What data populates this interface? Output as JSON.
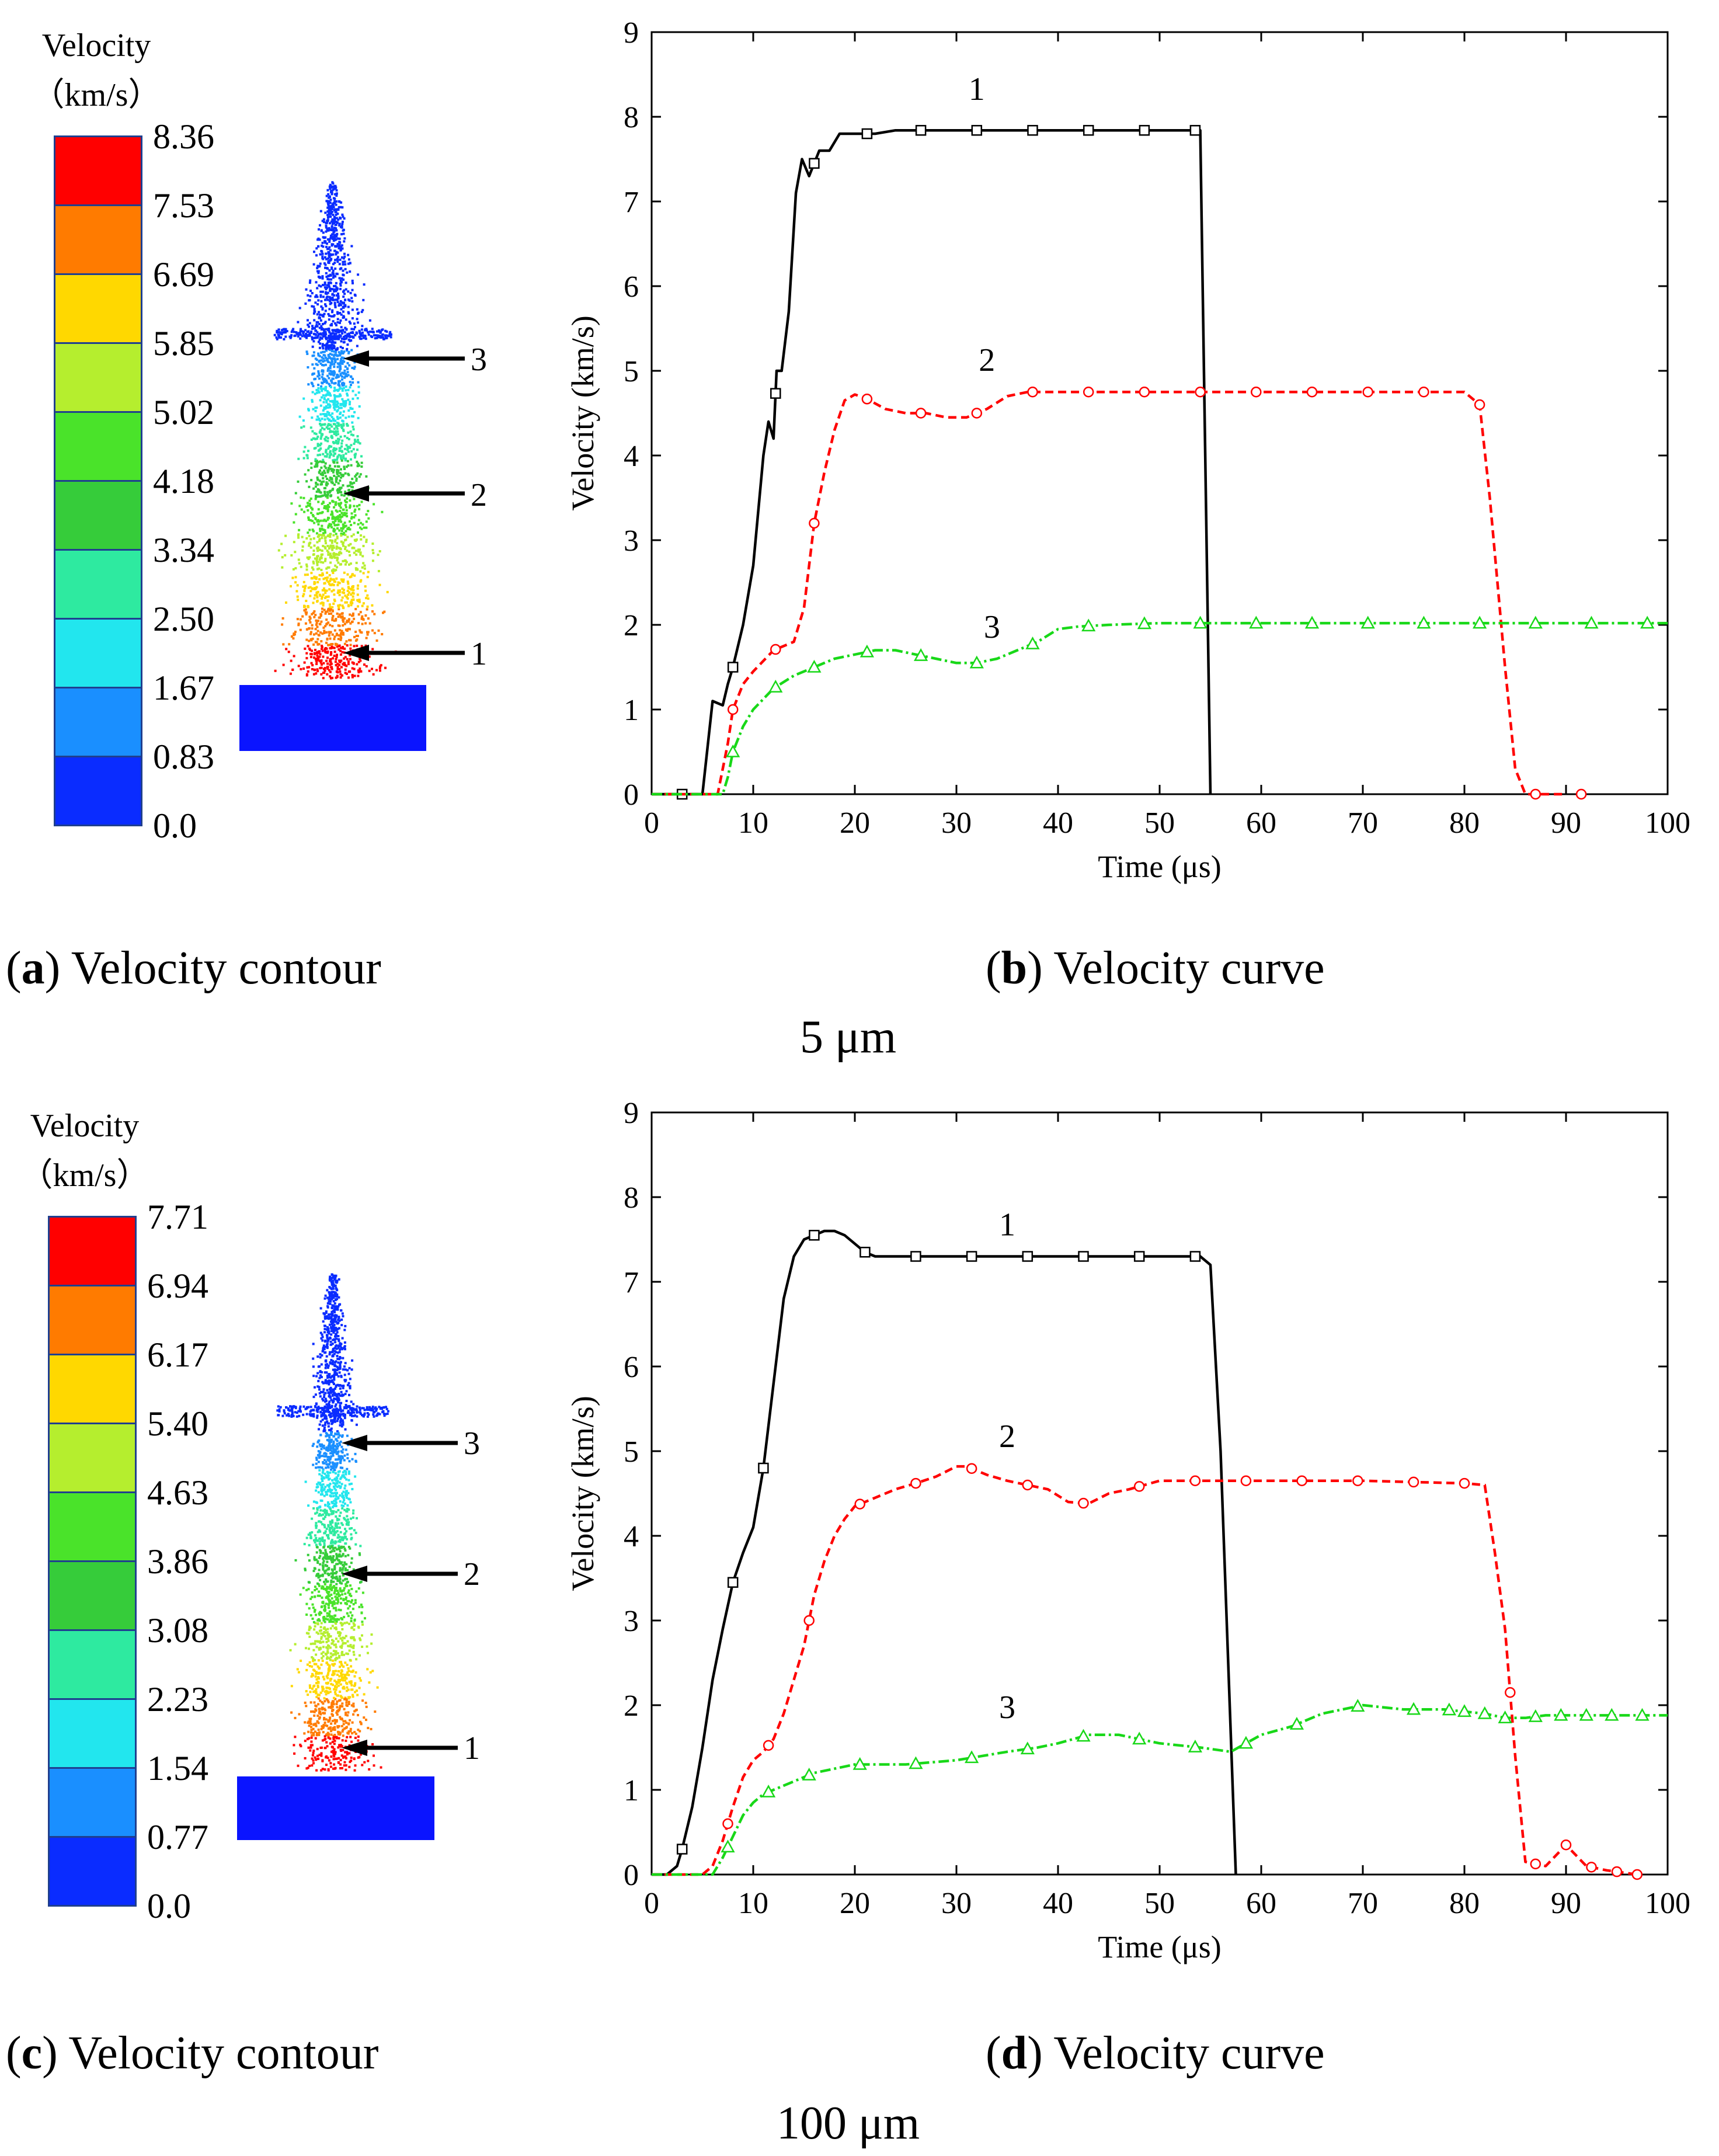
{
  "contours": [
    {
      "id": "a",
      "title_line1": "Velocity",
      "title_line2": "（km/s）",
      "levels": [
        "8.36",
        "7.53",
        "6.69",
        "5.85",
        "5.02",
        "4.18",
        "3.34",
        "2.50",
        "1.67",
        "0.83",
        "0.0"
      ],
      "colors": [
        "#ff0000",
        "#ff7b00",
        "#ffd800",
        "#b5ee2e",
        "#4ae32a",
        "#36cc3a",
        "#2eeaa0",
        "#22e6ee",
        "#1a8fff",
        "#0a2cff"
      ],
      "arrow_labels": [
        "3",
        "2",
        "1"
      ],
      "caption_letter": "a",
      "caption_text": "Velocity contour"
    },
    {
      "id": "c",
      "title_line1": "Velocity",
      "title_line2": "（km/s）",
      "levels": [
        "7.71",
        "6.94",
        "6.17",
        "5.40",
        "4.63",
        "3.86",
        "3.08",
        "2.23",
        "1.54",
        "0.77",
        "0.0"
      ],
      "colors": [
        "#ff0000",
        "#ff7b00",
        "#ffd800",
        "#b5ee2e",
        "#4ae32a",
        "#36cc3a",
        "#2eeaa0",
        "#22e6ee",
        "#1a8fff",
        "#0a2cff"
      ],
      "arrow_labels": [
        "3",
        "2",
        "1"
      ],
      "caption_letter": "c",
      "caption_text": "Velocity contour"
    }
  ],
  "group_labels": [
    "5 μm",
    "100 μm"
  ],
  "chart_data": [
    {
      "type": "line",
      "caption_letter": "b",
      "caption_text": "Velocity curve",
      "xlabel": "Time (μs)",
      "ylabel": "Velocity (km/s)",
      "xlim": [
        0,
        100
      ],
      "ylim": [
        0,
        9
      ],
      "xticks": [
        0,
        10,
        20,
        30,
        40,
        50,
        60,
        70,
        80,
        90,
        100
      ],
      "yticks": [
        0,
        1,
        2,
        3,
        4,
        5,
        6,
        7,
        8,
        9
      ],
      "series": [
        {
          "name": "1",
          "color": "#000000",
          "dash": "",
          "marker": "square",
          "x": [
            0,
            5,
            6,
            7,
            7.5,
            8,
            9,
            10,
            11,
            11.5,
            12,
            12.3,
            12.8,
            13.5,
            14.2,
            14.8,
            15.5,
            16.5,
            17.5,
            18.5,
            20,
            22,
            24,
            26,
            30,
            40,
            50,
            54,
            55
          ],
          "y": [
            0,
            0,
            1.1,
            1.05,
            1.3,
            1.5,
            2.0,
            2.7,
            4.0,
            4.4,
            4.2,
            5.0,
            5.0,
            5.7,
            7.1,
            7.5,
            7.3,
            7.6,
            7.6,
            7.8,
            7.8,
            7.8,
            7.84,
            7.84,
            7.84,
            7.84,
            7.84,
            7.84,
            0
          ],
          "marker_x": [
            3,
            8,
            12.2,
            16,
            21.2,
            26.5,
            32,
            37.5,
            43,
            48.5,
            53.5
          ],
          "label": "1",
          "label_x": 32,
          "label_y": 8.2
        },
        {
          "name": "2",
          "color": "#ff0000",
          "dash": "14,8",
          "marker": "circle",
          "x": [
            0,
            6.5,
            7,
            7.5,
            8,
            9,
            10,
            12,
            14,
            15,
            16,
            17,
            18,
            19,
            20,
            21,
            23,
            25,
            27,
            29,
            31,
            33,
            35,
            37,
            40,
            50,
            60,
            70,
            80,
            81.5,
            82.5,
            84,
            85,
            86,
            87,
            90
          ],
          "y": [
            0,
            0,
            0.3,
            0.6,
            1.0,
            1.3,
            1.45,
            1.7,
            1.8,
            2.2,
            3.2,
            3.8,
            4.3,
            4.65,
            4.72,
            4.68,
            4.55,
            4.5,
            4.5,
            4.45,
            4.45,
            4.55,
            4.7,
            4.75,
            4.75,
            4.75,
            4.75,
            4.75,
            4.75,
            4.6,
            3.5,
            1.5,
            0.3,
            0,
            0,
            0
          ],
          "marker_x": [
            8,
            12.2,
            16,
            21.2,
            26.5,
            32,
            37.5,
            43,
            48.5,
            54,
            59.5,
            65,
            70.5,
            76,
            81.5,
            87,
            91.5
          ],
          "label": "2",
          "label_x": 33,
          "label_y": 5.0
        },
        {
          "name": "3",
          "color": "#18d818",
          "dash": "18,6,4,6",
          "marker": "triangle",
          "x": [
            0,
            7,
            7.5,
            8,
            9,
            10,
            12,
            14,
            16,
            18,
            20,
            22,
            24,
            26,
            28,
            30,
            32,
            34,
            36,
            38,
            40,
            42,
            45,
            50,
            55,
            60,
            70,
            80,
            90,
            100
          ],
          "y": [
            0,
            0,
            0.2,
            0.5,
            0.8,
            1.0,
            1.25,
            1.4,
            1.5,
            1.6,
            1.65,
            1.7,
            1.7,
            1.65,
            1.6,
            1.55,
            1.55,
            1.6,
            1.7,
            1.8,
            1.95,
            1.98,
            2.0,
            2.02,
            2.02,
            2.02,
            2.02,
            2.02,
            2.02,
            2.02
          ],
          "marker_x": [
            8,
            12.2,
            16,
            21.2,
            26.5,
            32,
            37.5,
            43,
            48.5,
            54,
            59.5,
            65,
            70.5,
            76,
            81.5,
            87,
            92.5,
            98
          ],
          "label": "3",
          "label_x": 33.5,
          "label_y": 1.85
        }
      ]
    },
    {
      "type": "line",
      "caption_letter": "d",
      "caption_text": "Velocity curve",
      "xlabel": "Time (μs)",
      "ylabel": "Velocity (km/s)",
      "xlim": [
        0,
        100
      ],
      "ylim": [
        0,
        9
      ],
      "xticks": [
        0,
        10,
        20,
        30,
        40,
        50,
        60,
        70,
        80,
        90,
        100
      ],
      "yticks": [
        0,
        1,
        2,
        3,
        4,
        5,
        6,
        7,
        8,
        9
      ],
      "series": [
        {
          "name": "1",
          "color": "#000000",
          "dash": "",
          "marker": "square",
          "x": [
            0,
            1.5,
            2.5,
            3,
            4,
            5,
            6,
            7,
            8,
            9,
            10,
            11,
            12,
            13,
            14,
            15,
            16,
            17,
            18,
            19,
            20,
            21,
            22,
            24,
            30,
            40,
            50,
            54,
            55,
            56,
            57.5
          ],
          "y": [
            0,
            0,
            0.1,
            0.3,
            0.8,
            1.5,
            2.3,
            2.9,
            3.45,
            3.8,
            4.1,
            4.8,
            5.8,
            6.8,
            7.3,
            7.5,
            7.55,
            7.6,
            7.6,
            7.55,
            7.45,
            7.35,
            7.3,
            7.3,
            7.3,
            7.3,
            7.3,
            7.3,
            7.2,
            5,
            0
          ],
          "marker_x": [
            3,
            8,
            11,
            16,
            21,
            26,
            31.5,
            37,
            42.5,
            48,
            53.5
          ],
          "label": "1",
          "label_x": 35,
          "label_y": 7.55
        },
        {
          "name": "2",
          "color": "#ff0000",
          "dash": "14,8",
          "marker": "circle",
          "x": [
            0,
            5,
            6,
            7,
            8,
            9,
            10,
            11,
            12,
            13,
            14,
            15,
            16,
            17,
            18,
            19,
            20,
            22,
            24,
            26,
            28,
            30,
            31,
            33,
            35,
            37,
            39,
            41,
            43,
            45,
            47,
            50,
            52,
            55,
            60,
            70,
            80,
            82,
            83,
            84,
            85,
            86,
            88,
            90,
            92,
            94,
            97
          ],
          "y": [
            0,
            0,
            0.1,
            0.4,
            0.8,
            1.15,
            1.35,
            1.45,
            1.6,
            1.9,
            2.3,
            2.7,
            3.3,
            3.7,
            4.0,
            4.2,
            4.35,
            4.45,
            4.55,
            4.62,
            4.7,
            4.82,
            4.82,
            4.72,
            4.65,
            4.6,
            4.55,
            4.4,
            4.38,
            4.5,
            4.55,
            4.65,
            4.65,
            4.65,
            4.65,
            4.65,
            4.62,
            4.6,
            3.8,
            2.9,
            1.4,
            0.15,
            0.1,
            0.35,
            0.1,
            0.05,
            0
          ],
          "marker_x": [
            7.5,
            11.5,
            15.5,
            20.5,
            26,
            31.5,
            37,
            42.5,
            48,
            53.5,
            58.5,
            64,
            69.5,
            75,
            80,
            84.5,
            87,
            90,
            92.5,
            95,
            97
          ],
          "label": "2",
          "label_x": 35,
          "label_y": 5.05
        },
        {
          "name": "3",
          "color": "#18d818",
          "dash": "18,6,4,6",
          "marker": "triangle",
          "x": [
            0,
            6,
            7,
            8,
            9,
            10,
            11,
            12,
            14,
            16,
            20,
            25,
            30,
            35,
            38,
            40,
            43,
            46,
            50,
            54,
            57,
            60,
            63,
            66,
            70,
            74,
            78,
            82,
            84,
            86,
            88,
            90,
            100
          ],
          "y": [
            0,
            0,
            0.2,
            0.45,
            0.7,
            0.85,
            0.95,
            1.0,
            1.1,
            1.2,
            1.3,
            1.3,
            1.35,
            1.45,
            1.5,
            1.55,
            1.65,
            1.65,
            1.55,
            1.5,
            1.45,
            1.65,
            1.75,
            1.9,
            2.0,
            1.95,
            1.95,
            1.9,
            1.85,
            1.85,
            1.88,
            1.88,
            1.88
          ],
          "marker_x": [
            7.5,
            11.5,
            15.5,
            20.5,
            26,
            31.5,
            37,
            42.5,
            48,
            53.5,
            58.5,
            63.5,
            69.5,
            75,
            78.5,
            80,
            82,
            84,
            87,
            89.5,
            92,
            94.5,
            97.5
          ],
          "label": "3",
          "label_x": 35,
          "label_y": 1.85
        }
      ]
    }
  ]
}
